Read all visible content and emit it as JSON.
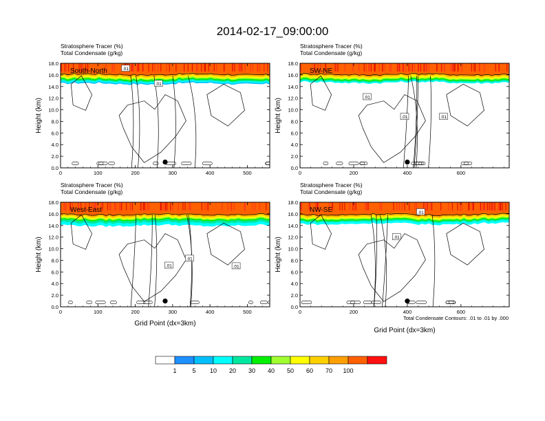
{
  "figure": {
    "title": "2014-02-17_09:00:00",
    "footnote": "Total Condensate Contours: .01 to .01 by .000",
    "xlabel": "Grid Point (dx=3km)",
    "ylabel": "Height (km)",
    "left_string_1": "Stratosphere Tracer",
    "left_string_1_units": "(%)",
    "left_string_2": "Total Condensate",
    "left_string_2_units": "(g/kg)"
  },
  "colorbar": {
    "levels": [
      "1",
      "5",
      "10",
      "20",
      "30",
      "40",
      "50",
      "60",
      "70",
      "100"
    ],
    "colors": [
      "#ffffff",
      "#1e90ff",
      "#00bfff",
      "#00ffff",
      "#00e8a0",
      "#00f000",
      "#a0ff30",
      "#ffff00",
      "#ffd000",
      "#ffa000",
      "#ff6000",
      "#ff1010"
    ]
  },
  "chart_data": [
    {
      "type": "heatmap",
      "panel": "South-North",
      "title": "South-North",
      "xlabel": "",
      "ylabel": "Height (km)",
      "xlim": [
        0,
        560
      ],
      "ylim": [
        0,
        18
      ],
      "xticks": [
        0,
        100,
        200,
        300,
        400,
        500
      ],
      "yticks": [
        "0.0",
        "2.0",
        "4.0",
        "6.0",
        "8.0",
        "10.0",
        "12.0",
        "14.0",
        "16.0",
        "18.0"
      ],
      "tracer_layers_km": [
        {
          "level": "100",
          "bottom": 16.2,
          "top": 18.0
        },
        {
          "level": "70",
          "bottom": 15.9,
          "top": 16.2
        },
        {
          "level": "60",
          "bottom": 15.7,
          "top": 15.9
        },
        {
          "level": "50",
          "bottom": 15.5,
          "top": 15.7
        },
        {
          "level": "40",
          "bottom": 15.3,
          "top": 15.5
        },
        {
          "level": "30",
          "bottom": 15.1,
          "top": 15.3
        },
        {
          "level": "20",
          "bottom": 14.9,
          "top": 15.1
        },
        {
          "level": "10",
          "bottom": 14.7,
          "top": 14.9
        },
        {
          "level": "5",
          "bottom": 14.5,
          "top": 14.7
        }
      ],
      "contour_labels": [
        {
          "text": ".01",
          "x": 174,
          "y": 17.1
        },
        {
          "text": ".01",
          "x": 262,
          "y": 14.5
        }
      ],
      "marker": {
        "x": 280,
        "y": 1.0
      },
      "condensate_contour_level": 0.01
    },
    {
      "type": "heatmap",
      "panel": "SW-NE",
      "title": "SW-NE",
      "xlabel": "",
      "ylabel": "Height (km)",
      "xlim": [
        0,
        780
      ],
      "ylim": [
        0,
        18
      ],
      "xticks": [
        0,
        200,
        400,
        600
      ],
      "yticks": [
        "0.0",
        "2.0",
        "4.0",
        "6.0",
        "8.0",
        "10.0",
        "12.0",
        "14.0",
        "16.0",
        "18.0"
      ],
      "tracer_layers_km": [
        {
          "level": "100",
          "bottom": 16.2,
          "top": 18.0
        },
        {
          "level": "70",
          "bottom": 15.9,
          "top": 16.2
        },
        {
          "level": "60",
          "bottom": 15.7,
          "top": 15.9
        },
        {
          "level": "50",
          "bottom": 15.5,
          "top": 15.7
        },
        {
          "level": "40",
          "bottom": 15.3,
          "top": 15.5
        },
        {
          "level": "30",
          "bottom": 15.1,
          "top": 15.3
        },
        {
          "level": "20",
          "bottom": 14.9,
          "top": 15.1
        },
        {
          "level": "10",
          "bottom": 14.7,
          "top": 14.9
        }
      ],
      "contour_labels": [
        {
          "text": ".01",
          "x": 390,
          "y": 8.8
        },
        {
          "text": ".01",
          "x": 535,
          "y": 8.8
        },
        {
          "text": ".01",
          "x": 250,
          "y": 12.2
        }
      ],
      "marker": {
        "x": 400,
        "y": 1.0
      },
      "condensate_contour_level": 0.01
    },
    {
      "type": "heatmap",
      "panel": "West-East",
      "title": "West-East",
      "xlabel": "Grid Point (dx=3km)",
      "ylabel": "Height (km)",
      "xlim": [
        0,
        560
      ],
      "ylim": [
        0,
        18
      ],
      "xticks": [
        0,
        100,
        200,
        300,
        400,
        500
      ],
      "yticks": [
        "0.0",
        "2.0",
        "4.0",
        "6.0",
        "8.0",
        "10.0",
        "12.0",
        "14.0",
        "16.0",
        "18.0"
      ],
      "tracer_layers_km": [
        {
          "level": "100",
          "bottom": 16.0,
          "top": 18.0
        },
        {
          "level": "70",
          "bottom": 15.7,
          "top": 16.0
        },
        {
          "level": "60",
          "bottom": 15.5,
          "top": 15.7
        },
        {
          "level": "50",
          "bottom": 15.3,
          "top": 15.5
        },
        {
          "level": "40",
          "bottom": 15.1,
          "top": 15.3
        },
        {
          "level": "30",
          "bottom": 14.9,
          "top": 15.1
        },
        {
          "level": "20",
          "bottom": 14.5,
          "top": 14.9
        },
        {
          "level": "10",
          "bottom": 14.0,
          "top": 14.5
        }
      ],
      "contour_labels": [
        {
          "text": ".01",
          "x": 290,
          "y": 7.1
        },
        {
          "text": ".01",
          "x": 345,
          "y": 8.3
        },
        {
          "text": ".01",
          "x": 470,
          "y": 7.0
        }
      ],
      "marker": {
        "x": 280,
        "y": 1.0
      },
      "condensate_contour_level": 0.01
    },
    {
      "type": "heatmap",
      "panel": "NW-SE",
      "title": "NW-SE",
      "xlabel": "Grid Point (dx=3km)",
      "ylabel": "Height (km)",
      "xlim": [
        0,
        780
      ],
      "ylim": [
        0,
        18
      ],
      "xticks": [
        0,
        200,
        400,
        600
      ],
      "yticks": [
        "0.0",
        "2.0",
        "4.0",
        "6.0",
        "8.0",
        "10.0",
        "12.0",
        "14.0",
        "16.0",
        "18.0"
      ],
      "tracer_layers_km": [
        {
          "level": "100",
          "bottom": 16.0,
          "top": 18.0
        },
        {
          "level": "70",
          "bottom": 15.7,
          "top": 16.0
        },
        {
          "level": "60",
          "bottom": 15.5,
          "top": 15.7
        },
        {
          "level": "50",
          "bottom": 15.3,
          "top": 15.5
        },
        {
          "level": "40",
          "bottom": 15.1,
          "top": 15.3
        },
        {
          "level": "30",
          "bottom": 14.9,
          "top": 15.1
        },
        {
          "level": "20",
          "bottom": 14.7,
          "top": 14.9
        },
        {
          "level": "10",
          "bottom": 14.3,
          "top": 14.7
        }
      ],
      "contour_labels": [
        {
          "text": ".01",
          "x": 360,
          "y": 12.0
        },
        {
          "text": ".01",
          "x": 450,
          "y": 16.3
        }
      ],
      "marker": {
        "x": 400,
        "y": 1.0
      },
      "condensate_contour_level": 0.01
    }
  ]
}
